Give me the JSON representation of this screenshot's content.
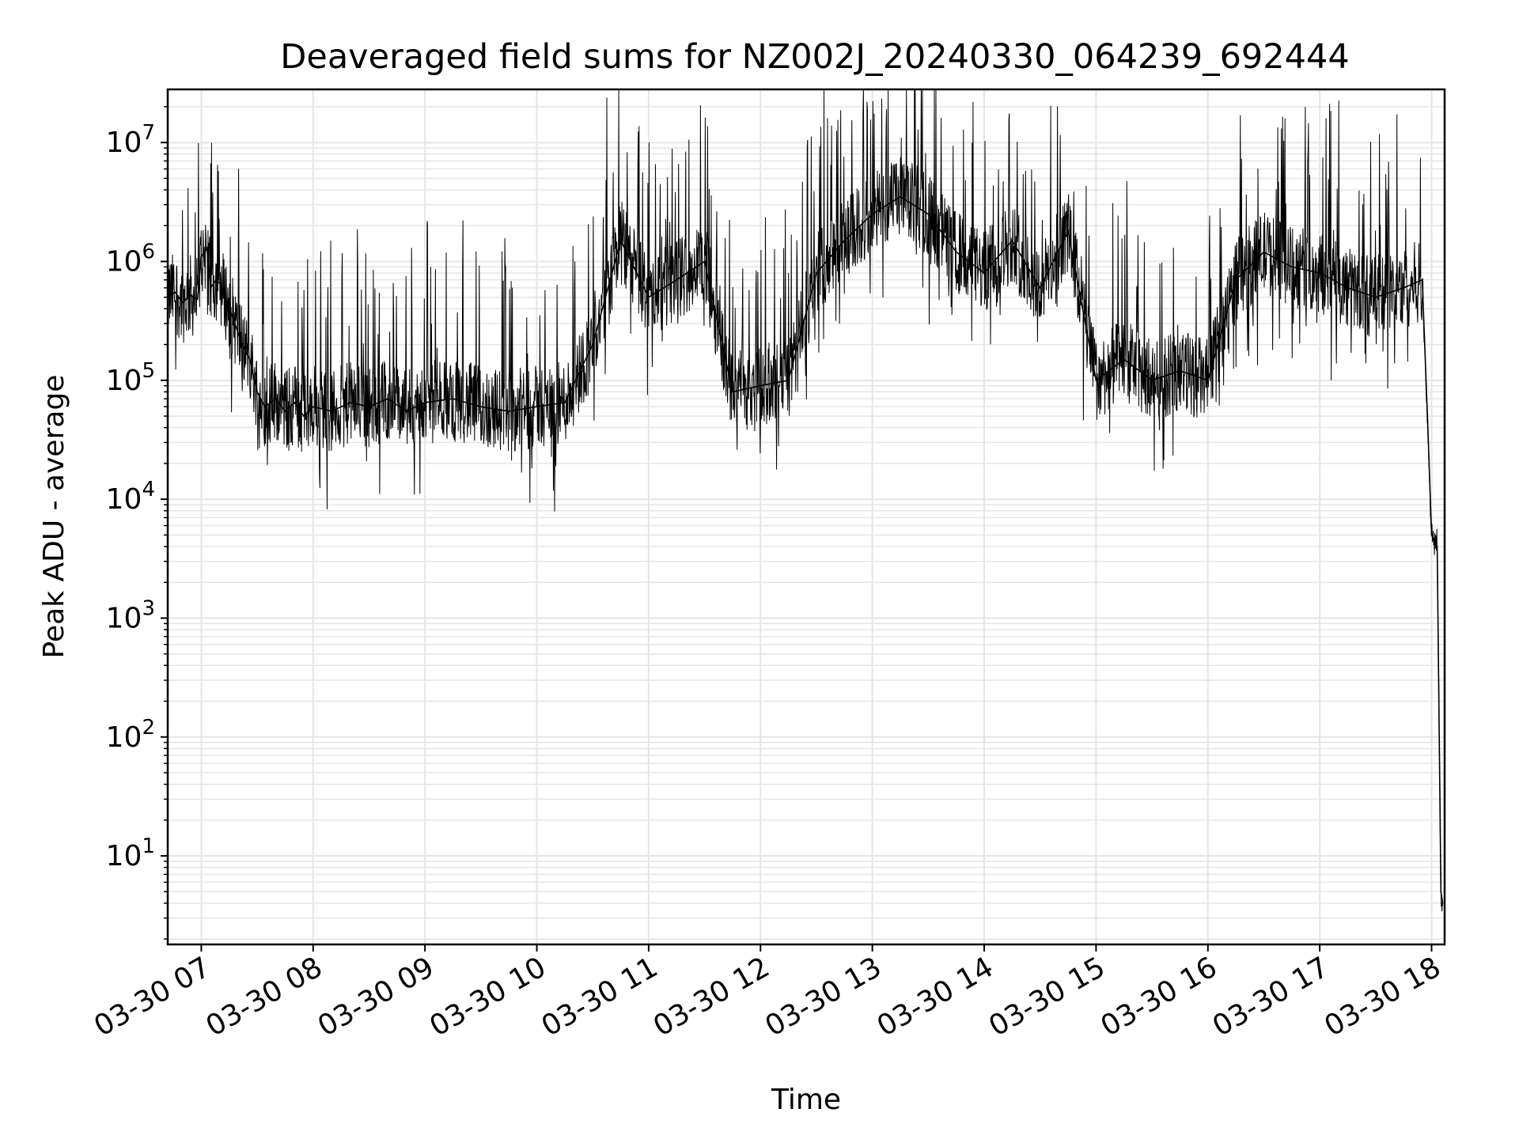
{
  "chart_data": {
    "type": "line",
    "title": "Deaveraged field sums for NZ002J_20240330_064239_692444",
    "xlabel": "Time",
    "ylabel": "Peak ADU - average",
    "yscale": "log",
    "ylim": [
      1.8,
      28000000
    ],
    "xlim": [
      "2024-03-30 06:42",
      "2024-03-30 18:07"
    ],
    "x_tick_labels": [
      "03-30 07",
      "03-30 08",
      "03-30 09",
      "03-30 10",
      "03-30 11",
      "03-30 12",
      "03-30 13",
      "03-30 14",
      "03-30 15",
      "03-30 16",
      "03-30 17",
      "03-30 18"
    ],
    "x_ticks": [
      "2024-03-30 07:00",
      "2024-03-30 08:00",
      "2024-03-30 09:00",
      "2024-03-30 10:00",
      "2024-03-30 11:00",
      "2024-03-30 12:00",
      "2024-03-30 13:00",
      "2024-03-30 14:00",
      "2024-03-30 15:00",
      "2024-03-30 16:00",
      "2024-03-30 17:00",
      "2024-03-30 18:00"
    ],
    "y_ticks": [
      10,
      100,
      1000,
      10000,
      100000,
      1000000,
      10000000
    ],
    "y_tick_labels": [
      {
        "base": "10",
        "exp": "1"
      },
      {
        "base": "10",
        "exp": "2"
      },
      {
        "base": "10",
        "exp": "3"
      },
      {
        "base": "10",
        "exp": "4"
      },
      {
        "base": "10",
        "exp": "5"
      },
      {
        "base": "10",
        "exp": "6"
      },
      {
        "base": "10",
        "exp": "7"
      }
    ],
    "grid": true,
    "line_color": "#000000",
    "grid_color": "#e5e5e5",
    "series": [
      {
        "x": [
          "2024-03-30 06:42",
          "2024-03-30 06:46",
          "2024-03-30 06:50",
          "2024-03-30 06:54",
          "2024-03-30 06:58",
          "2024-03-30 07:00",
          "2024-03-30 07:03",
          "2024-03-30 07:05",
          "2024-03-30 07:08",
          "2024-03-30 07:10",
          "2024-03-30 07:14",
          "2024-03-30 07:18",
          "2024-03-30 07:22",
          "2024-03-30 07:26",
          "2024-03-30 07:30",
          "2024-03-30 07:34",
          "2024-03-30 07:40",
          "2024-03-30 07:45",
          "2024-03-30 07:50",
          "2024-03-30 07:55",
          "2024-03-30 08:00",
          "2024-03-30 08:10",
          "2024-03-30 08:20",
          "2024-03-30 08:30",
          "2024-03-30 08:40",
          "2024-03-30 08:50",
          "2024-03-30 09:00",
          "2024-03-30 09:15",
          "2024-03-30 09:30",
          "2024-03-30 09:45",
          "2024-03-30 10:00",
          "2024-03-30 10:15",
          "2024-03-30 10:30",
          "2024-03-30 10:45",
          "2024-03-30 11:00",
          "2024-03-30 11:15",
          "2024-03-30 11:30",
          "2024-03-30 11:45",
          "2024-03-30 12:00",
          "2024-03-30 12:15",
          "2024-03-30 12:30",
          "2024-03-30 12:45",
          "2024-03-30 13:00",
          "2024-03-30 13:15",
          "2024-03-30 13:30",
          "2024-03-30 13:45",
          "2024-03-30 14:00",
          "2024-03-30 14:15",
          "2024-03-30 14:30",
          "2024-03-30 14:45",
          "2024-03-30 15:00",
          "2024-03-30 15:15",
          "2024-03-30 15:30",
          "2024-03-30 15:45",
          "2024-03-30 16:00",
          "2024-03-30 16:15",
          "2024-03-30 16:30",
          "2024-03-30 16:45",
          "2024-03-30 17:00",
          "2024-03-30 17:15",
          "2024-03-30 17:30",
          "2024-03-30 17:45",
          "2024-03-30 17:55",
          "2024-03-30 17:58",
          "2024-03-30 18:00",
          "2024-03-30 18:03",
          "2024-03-30 18:05",
          "2024-03-30 18:06"
        ],
        "values": [
          500000,
          550000,
          450000,
          520000,
          480000,
          1100000,
          1300000,
          600000,
          700000,
          650000,
          450000,
          300000,
          200000,
          150000,
          80000,
          60000,
          70000,
          55000,
          65000,
          50000,
          60000,
          55000,
          65000,
          60000,
          70000,
          55000,
          65000,
          70000,
          60000,
          55000,
          60000,
          65000,
          200000,
          1500000,
          500000,
          700000,
          1000000,
          80000,
          90000,
          100000,
          800000,
          1500000,
          2500000,
          3500000,
          2500000,
          1200000,
          800000,
          1500000,
          600000,
          1800000,
          100000,
          150000,
          100000,
          120000,
          100000,
          700000,
          1200000,
          900000,
          800000,
          600000,
          500000,
          600000,
          700000,
          40000,
          5000,
          4000,
          5,
          4
        ]
      }
    ]
  }
}
